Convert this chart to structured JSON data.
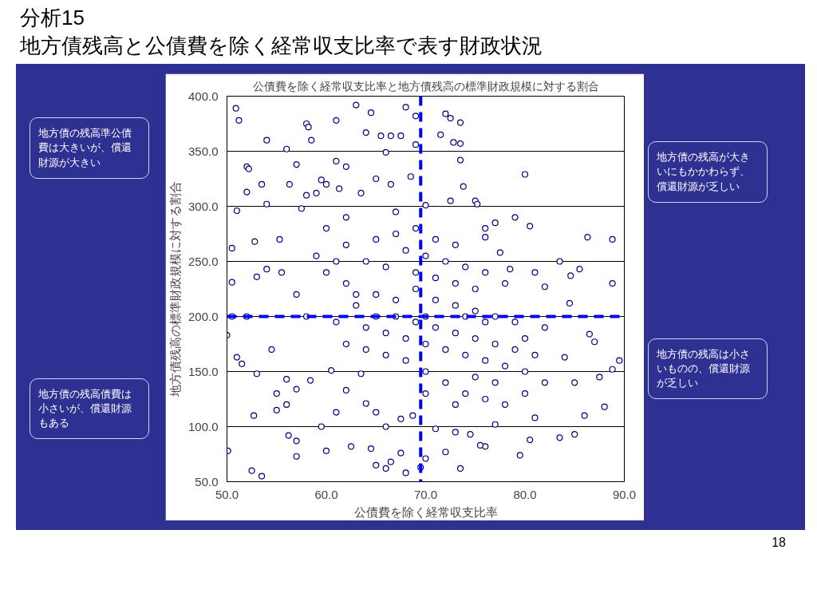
{
  "chart_data": {
    "type": "scatter",
    "title": "分析15\n地方債残高と公債費を除く経常収支比率で表す財政状況",
    "subtitle": "公債費を除く経常収支比率と地方債残高の標準財政規模に対する割合",
    "xlabel": "公債費を除く経常収支比率",
    "ylabel": "地方債残高の標準財政規模に対する割合",
    "annotations": [
      "地方債の残高準公債費は大きいが、償還財源が大きい",
      "地方債の残高が大きいにもかかわらず、償還財源が乏しい",
      "地方債の残高債費は小さいが、償還財源もある",
      "地方債の残高は小さいものの、償還財源が乏しい",
      "18"
    ],
    "xlim": [
      50,
      90
    ],
    "ylim": [
      50,
      400
    ],
    "xticks": [
      {
        "value": 50,
        "label": "50.0"
      },
      {
        "value": 60,
        "label": "60.0"
      },
      {
        "value": 70,
        "label": "70.0"
      },
      {
        "value": 80,
        "label": "80.0"
      },
      {
        "value": 90,
        "label": "90.0"
      }
    ],
    "yticks": [
      {
        "value": 50,
        "label": "50.0"
      },
      {
        "value": 100,
        "label": "100.0"
      },
      {
        "value": 150,
        "label": "150.0"
      },
      {
        "value": 200,
        "label": "200.0"
      },
      {
        "value": 250,
        "label": "250.0"
      },
      {
        "value": 300,
        "label": "300.0"
      },
      {
        "value": 350,
        "label": "350.0"
      },
      {
        "value": 400,
        "label": "400.0"
      }
    ],
    "grid": "y",
    "marker": "circle",
    "ref_lines": [
      {
        "axis": "x",
        "value": 69.5,
        "label": null,
        "color": "#0000ff",
        "line_style": "dashed"
      },
      {
        "axis": "y",
        "value": 200,
        "label": null,
        "color": "#0000ff",
        "line_style": "dashed"
      }
    ],
    "series": [
      {
        "color": "#000080",
        "x": [
          50.9,
          51.2,
          54,
          56,
          58,
          58.2,
          58.5,
          61,
          63,
          64.5,
          64,
          65.5,
          66.5,
          67.5,
          68,
          69,
          69,
          72,
          72.5,
          73.5,
          71.5,
          72.8,
          73.5,
          66,
          57,
          61,
          62,
          52,
          52.2,
          68.5,
          80,
          73.5,
          52,
          53.5,
          56.3,
          59,
          59.5,
          60,
          61.3,
          63.5,
          65,
          66.5,
          70,
          72.5,
          75,
          75.2,
          73.8,
          57.5,
          54,
          51,
          55.3,
          52.8,
          50.5,
          58,
          62,
          67,
          76,
          77,
          79,
          80.5,
          77.5,
          81,
          86.3,
          88.8,
          76,
          83.5,
          78.5,
          85.5,
          84.6,
          88.8,
          82,
          84.5,
          86.5,
          87,
          89.5,
          88.8,
          84,
          85,
          87.5,
          86,
          88,
          85,
          83.5,
          80.5,
          79.5,
          76,
          73.5,
          72,
          70,
          69.5,
          68,
          67.5,
          66.5,
          66,
          65,
          64.5,
          60,
          62.5,
          57,
          53.5,
          52.5,
          50.1,
          52.7,
          55,
          56,
          56.2,
          57,
          59.5,
          61,
          64,
          65,
          66,
          67.5,
          68.7,
          71,
          73,
          74.5,
          75.5,
          77,
          81,
          51,
          51.5,
          53,
          50,
          54.5,
          56,
          58.4,
          60.5,
          62,
          63.5,
          55,
          57,
          50.5,
          53,
          54,
          55.5,
          52,
          50.5,
          60,
          62,
          64,
          66,
          68,
          70,
          72,
          74,
          76,
          78,
          63,
          65,
          67,
          69,
          71,
          73,
          75,
          77,
          79,
          61,
          64,
          66,
          68,
          70,
          72,
          74,
          76,
          78,
          80,
          82,
          70,
          72,
          74,
          76,
          78,
          73,
          68,
          66,
          64,
          62,
          58,
          57,
          59,
          65,
          67,
          69,
          71,
          73,
          62,
          60,
          70,
          71,
          73,
          75,
          77,
          79,
          81,
          80,
          82,
          69,
          67,
          65,
          63,
          61,
          75,
          73,
          71,
          69,
          76,
          74,
          70,
          75,
          77,
          80
        ],
        "values": [
          389,
          378,
          360,
          352,
          375,
          372,
          360,
          378,
          392,
          385,
          367,
          364,
          364,
          364,
          390,
          382,
          356,
          384,
          380,
          376,
          365,
          358,
          357,
          349,
          338,
          341,
          336,
          336,
          334,
          327,
          329,
          342,
          313,
          320,
          320,
          312,
          324,
          320,
          316,
          312,
          325,
          320,
          301,
          305,
          305,
          302,
          318,
          298,
          302,
          296,
          270,
          268,
          262,
          310,
          290,
          295,
          280,
          285,
          290,
          282,
          258,
          240,
          272,
          270,
          272,
          250,
          243,
          243,
          237,
          230,
          227,
          212,
          184,
          177,
          160,
          152,
          163,
          140,
          145,
          110,
          118,
          93,
          90,
          88,
          74,
          82,
          62,
          77,
          71,
          63,
          58,
          76,
          68,
          62,
          65,
          80,
          78,
          82,
          73,
          55,
          60,
          78,
          110,
          115,
          120,
          92,
          87,
          100,
          113,
          121,
          113,
          100,
          107,
          110,
          98,
          95,
          93,
          83,
          102,
          108,
          163,
          157,
          148,
          183,
          170,
          143,
          142,
          151,
          133,
          148,
          130,
          134,
          231,
          236,
          243,
          240,
          200,
          200,
          240,
          230,
          250,
          245,
          260,
          255,
          250,
          245,
          240,
          230,
          210,
          220,
          215,
          225,
          215,
          210,
          205,
          200,
          195,
          195,
          190,
          185,
          180,
          175,
          170,
          165,
          160,
          155,
          150,
          140,
          150,
          140,
          130,
          125,
          120,
          120,
          160,
          165,
          170,
          175,
          200,
          220,
          255,
          270,
          275,
          280,
          270,
          265,
          265,
          280,
          200,
          190,
          185,
          180,
          175,
          170,
          165,
          180,
          190,
          195,
          200,
          200,
          220,
          250,
          225,
          230,
          235,
          240,
          195,
          200,
          130,
          145,
          140,
          130
        ]
      }
    ]
  }
}
